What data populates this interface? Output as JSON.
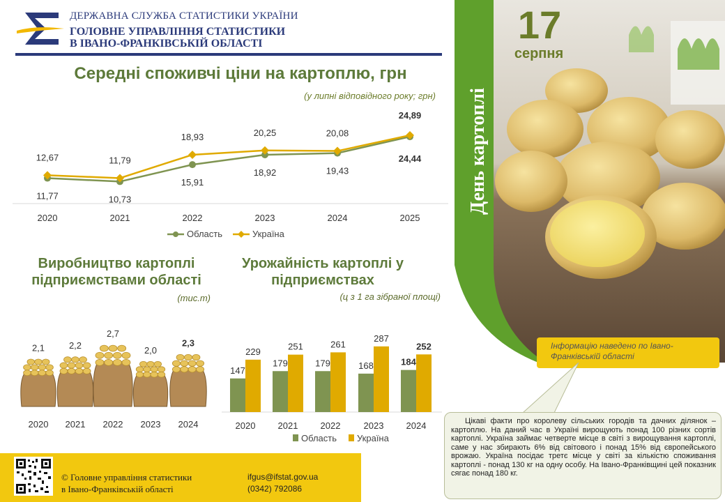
{
  "header": {
    "agency": "ДЕРЖАВНА СЛУЖБА СТАТИСТИКИ УКРАЇНИ",
    "office_line1": "ГОЛОВНЕ УПРАВЛІННЯ СТАТИСТИКИ",
    "office_line2": "В ІВАНО-ФРАНКІВСЬКІЙ ОБЛАСТІ"
  },
  "colors": {
    "navy": "#2b3a7a",
    "green": "#7f9451",
    "gold": "#e0aa00",
    "yellow": "#f2c80f",
    "title_green": "#5d7a3a"
  },
  "chart_data": [
    {
      "type": "line",
      "title": "Середні споживчі ціни на картоплю, грн",
      "subtitle": "(у липні відповідного року; грн)",
      "categories": [
        "2020",
        "2021",
        "2022",
        "2023",
        "2024",
        "2025"
      ],
      "series": [
        {
          "name": "Область",
          "values": [
            11.77,
            10.73,
            15.91,
            18.92,
            19.43,
            24.44
          ],
          "labels": [
            "11,77",
            "10,73",
            "15,91",
            "18,92",
            "19,43",
            "24,44"
          ],
          "color": "#7f9451"
        },
        {
          "name": "Україна",
          "values": [
            12.67,
            11.79,
            18.93,
            20.25,
            20.08,
            24.89
          ],
          "labels": [
            "12,67",
            "11,79",
            "18,93",
            "20,25",
            "20,08",
            "24,89"
          ],
          "color": "#e0aa00"
        }
      ],
      "ylim": [
        4,
        30
      ],
      "legend": "bottom"
    },
    {
      "type": "bar",
      "title": "Виробництво картоплі підприємствами області",
      "unit": "(тис.т)",
      "categories": [
        "2020",
        "2021",
        "2022",
        "2023",
        "2024"
      ],
      "values": [
        2.1,
        2.2,
        2.7,
        2.0,
        2.3
      ],
      "labels": [
        "2,1",
        "2,2",
        "2,7",
        "2,0",
        "2,3"
      ]
    },
    {
      "type": "bar",
      "title": "Урожайність картоплі у підприємствах",
      "subtitle": "(ц з 1 га зібраної площі)",
      "categories": [
        "2020",
        "2021",
        "2022",
        "2023",
        "2024"
      ],
      "series": [
        {
          "name": "Область",
          "values": [
            147,
            179,
            179,
            168,
            184
          ],
          "color": "#7f9451"
        },
        {
          "name": "Україна",
          "values": [
            229,
            251,
            261,
            287,
            252
          ],
          "color": "#e0aa00"
        }
      ],
      "ylim": [
        0,
        320
      ],
      "legend": "bottom"
    }
  ],
  "panel": {
    "day": "17",
    "month": "серпня",
    "vertical_title": "День картоплі",
    "info": "Інформацію наведено по Івано-Франківській області"
  },
  "facts": "Цікаві факти про королеву сільських городів та дачних ділянок – картоплю. На даний час в Україні вирощують понад 100 різних сортів картоплі. Україна займає четверте місце в світі з вирощування картоплі, саме у нас збирають 6% від світового і понад 15% від європейського врожаю. Україна посідає третє місце у світі за кількістю споживання картоплі - понад 130 кг на одну особу. На Івано-Франківщині цей показник сягає понад 180 кг.",
  "footer": {
    "copyright_line1": "© Головне управління статистики",
    "copyright_line2": "в Івано-Франківській області",
    "email": "ifgus@ifstat.gov.ua",
    "phone": "(0342) 792086"
  }
}
